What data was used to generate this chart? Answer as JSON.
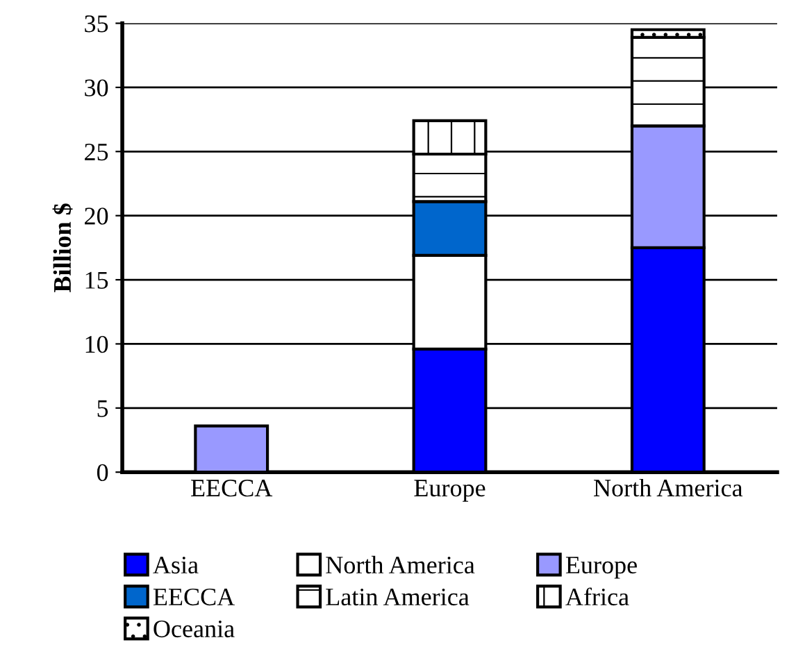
{
  "chart_data": {
    "type": "bar",
    "stacked": true,
    "ylabel": "Billion $",
    "categories": [
      "EECCA",
      "Europe",
      "North America"
    ],
    "series": [
      {
        "name": "Asia",
        "color": "#0000ff",
        "values": [
          null,
          9.6,
          17.5
        ]
      },
      {
        "name": "North America",
        "color": "#ffffff",
        "values": [
          null,
          7.3,
          null
        ]
      },
      {
        "name": "Europe",
        "color": "#9999ff",
        "values": [
          3.6,
          null,
          9.5
        ]
      },
      {
        "name": "EECCA",
        "color": "#0066cc",
        "values": [
          null,
          4.2,
          null
        ]
      },
      {
        "name": "Latin America",
        "color": "#ffffff",
        "values": [
          null,
          3.7,
          6.9
        ]
      },
      {
        "name": "Africa",
        "color": "#ffffff",
        "values": [
          null,
          2.6,
          null
        ]
      },
      {
        "name": "Oceania",
        "color": "#ffffff",
        "values": [
          null,
          null,
          0.6
        ]
      }
    ],
    "ylim": [
      0,
      35
    ],
    "yticks": [
      0,
      5,
      10,
      15,
      20,
      25,
      30,
      35
    ],
    "grid": "y",
    "legend": "bottom"
  }
}
